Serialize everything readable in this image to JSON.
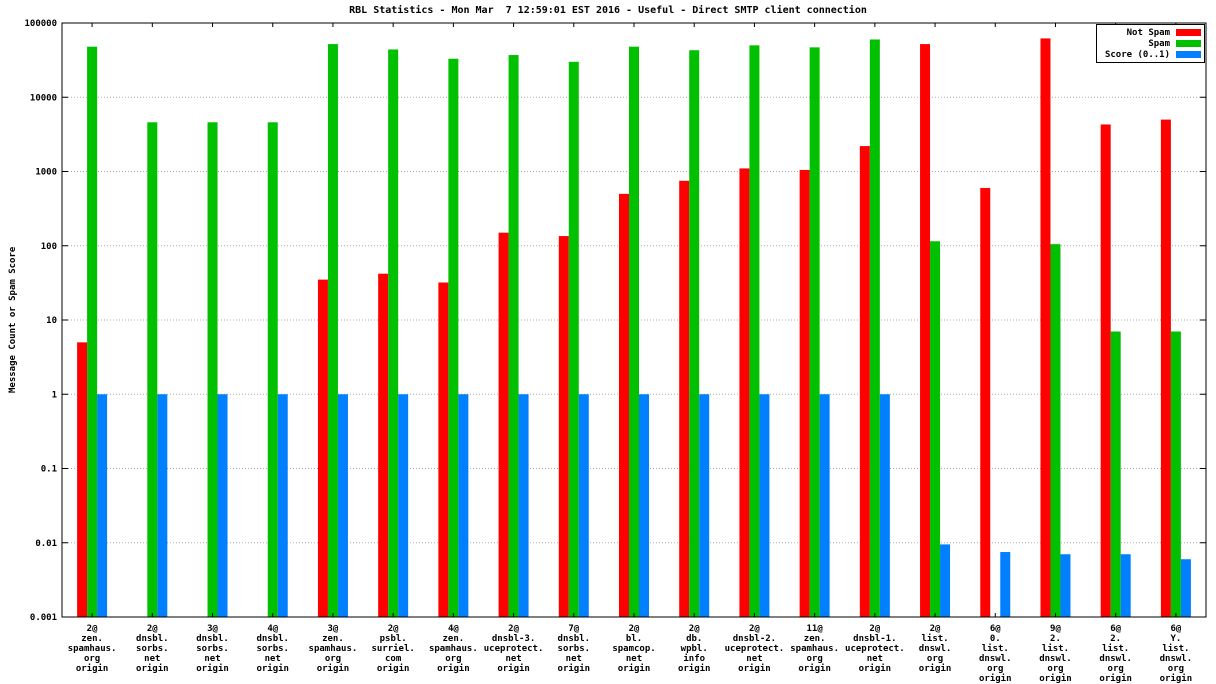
{
  "title": "RBL Statistics - Mon Mar  7 12:59:01 EST 2016 - Useful - Direct SMTP client connection",
  "chart_data": {
    "type": "bar",
    "ylabel": "Message Count or Spam Score",
    "y_scale": "log",
    "ylim": [
      0.001,
      100000
    ],
    "grid": true,
    "legend_position": "top-right",
    "y_ticks": [
      "100000",
      "10000",
      "1000",
      "100",
      "10",
      "1",
      "0.1",
      "0.01",
      "0.001"
    ],
    "legend": [
      {
        "label": "Not Spam",
        "color": "#ff0000"
      },
      {
        "label": "Spam",
        "color": "#00c000"
      },
      {
        "label": "Score (0..1)",
        "color": "#0080ff"
      }
    ],
    "categories": [
      [
        "2@",
        "zen.",
        "spamhaus.",
        "org",
        "origin"
      ],
      [
        "2@",
        "dnsbl.",
        "sorbs.",
        "net",
        "origin"
      ],
      [
        "3@",
        "dnsbl.",
        "sorbs.",
        "net",
        "origin"
      ],
      [
        "4@",
        "dnsbl.",
        "sorbs.",
        "net",
        "origin"
      ],
      [
        "3@",
        "zen.",
        "spamhaus.",
        "org",
        "origin"
      ],
      [
        "2@",
        "psbl.",
        "surriel.",
        "com",
        "origin"
      ],
      [
        "4@",
        "zen.",
        "spamhaus.",
        "org",
        "origin"
      ],
      [
        "2@",
        "dnsbl-3.",
        "uceprotect.",
        "net",
        "origin"
      ],
      [
        "7@",
        "dnsbl.",
        "sorbs.",
        "net",
        "origin"
      ],
      [
        "2@",
        "bl.",
        "spamcop.",
        "net",
        "origin"
      ],
      [
        "2@",
        "db.",
        "wpbl.",
        "info",
        "origin"
      ],
      [
        "2@",
        "dnsbl-2.",
        "uceprotect.",
        "net",
        "origin"
      ],
      [
        "11@",
        "zen.",
        "spamhaus.",
        "org",
        "origin"
      ],
      [
        "2@",
        "dnsbl-1.",
        "uceprotect.",
        "net",
        "origin"
      ],
      [
        "2@",
        "list.",
        "dnswl.",
        "org",
        "origin"
      ],
      [
        "6@",
        "0.",
        "list.",
        "dnswl.",
        "org",
        "origin"
      ],
      [
        "9@",
        "2.",
        "list.",
        "dnswl.",
        "org",
        "origin"
      ],
      [
        "6@",
        "2.",
        "list.",
        "dnswl.",
        "org",
        "origin"
      ],
      [
        "6@",
        "Y.",
        "list.",
        "dnswl.",
        "org",
        "origin"
      ]
    ],
    "series": [
      {
        "name": "Not Spam",
        "key": "notspam",
        "color": "#ff0000",
        "values": [
          5,
          null,
          null,
          null,
          35,
          42,
          32,
          150,
          135,
          500,
          750,
          1100,
          1050,
          2200,
          52000,
          600,
          62000,
          4300,
          5000
        ]
      },
      {
        "name": "Spam",
        "key": "spam",
        "color": "#00c000",
        "values": [
          48000,
          4600,
          4600,
          4600,
          52000,
          44000,
          33000,
          37000,
          30000,
          48000,
          43000,
          50000,
          47000,
          60000,
          115,
          null,
          105,
          7,
          7
        ]
      },
      {
        "name": "Score (0..1)",
        "key": "score",
        "color": "#0080ff",
        "values": [
          1,
          1,
          1,
          1,
          1,
          1,
          1,
          1,
          1,
          1,
          1,
          1,
          1,
          1,
          0.0095,
          0.0075,
          0.007,
          0.007,
          0.006
        ]
      }
    ]
  }
}
